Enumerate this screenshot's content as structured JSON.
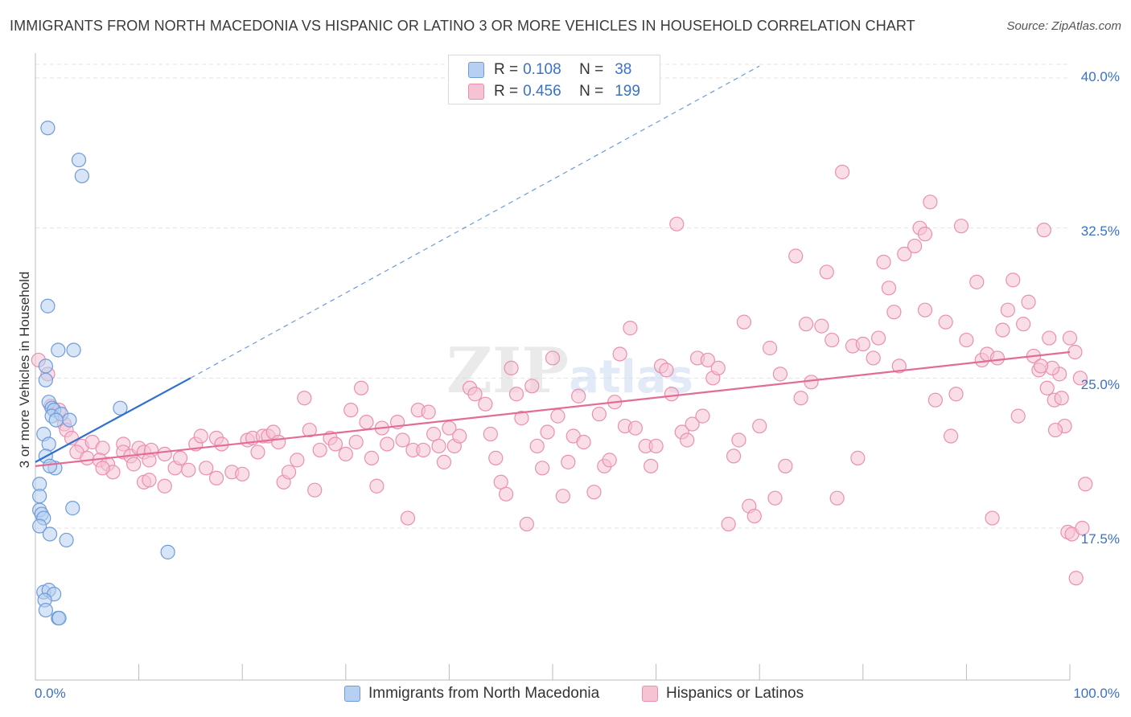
{
  "title": "IMMIGRANTS FROM NORTH MACEDONIA VS HISPANIC OR LATINO 3 OR MORE VEHICLES IN HOUSEHOLD CORRELATION CHART",
  "source": "Source: ZipAtlas.com",
  "watermark": "ZIPatlas",
  "legend_box": {
    "rows": [
      {
        "r_label": "R =",
        "r_value": "0.108",
        "n_label": "N =",
        "n_value": "38"
      },
      {
        "r_label": "R =",
        "r_value": "0.456",
        "n_label": "N =",
        "n_value": "199"
      }
    ]
  },
  "colors": {
    "blue_fill": "#b7cff0",
    "blue_stroke": "#6e9bd9",
    "blue_line": "#2f6fce",
    "pink_fill": "#f6c3d3",
    "pink_stroke": "#ea8fb0",
    "pink_line": "#e36b98",
    "tick_text": "#3a72c4",
    "grid": "#e3e3e3"
  },
  "chart_data": {
    "type": "scatter",
    "title": "IMMIGRANTS FROM NORTH MACEDONIA VS HISPANIC OR LATINO 3 OR MORE VEHICLES IN HOUSEHOLD CORRELATION CHART",
    "xlabel": "",
    "ylabel": "3 or more Vehicles in Household",
    "xlim": [
      0,
      100
    ],
    "ylim": [
      10.0,
      41.0
    ],
    "x_ticks_labels": [
      "0.0%",
      "100.0%"
    ],
    "y_ticks": [
      17.5,
      25.0,
      32.5,
      40.0
    ],
    "y_ticks_labels": [
      "17.5%",
      "25.0%",
      "32.5%",
      "40.0%"
    ],
    "grid": "horizontal dashed",
    "legend_position": "bottom",
    "series": [
      {
        "name": "Immigrants from North Macedonia",
        "color": "#6e9bd9",
        "r": 0.108,
        "n": 38,
        "trend": {
          "x0": 0,
          "y0": 20.8,
          "x1": 15,
          "y1": 25.0,
          "dashed_to": {
            "x": 70,
            "y": 40.6
          }
        },
        "points": [
          [
            1.2,
            37.5
          ],
          [
            4.2,
            35.9
          ],
          [
            4.5,
            35.1
          ],
          [
            1.2,
            28.6
          ],
          [
            2.2,
            26.4
          ],
          [
            3.7,
            26.4
          ],
          [
            1.0,
            25.6
          ],
          [
            1.0,
            24.9
          ],
          [
            1.3,
            23.8
          ],
          [
            1.6,
            23.5
          ],
          [
            1.8,
            23.4
          ],
          [
            1.6,
            23.1
          ],
          [
            8.2,
            23.5
          ],
          [
            2.5,
            23.2
          ],
          [
            2.0,
            22.9
          ],
          [
            3.3,
            22.9
          ],
          [
            0.8,
            22.2
          ],
          [
            1.3,
            21.7
          ],
          [
            1.0,
            21.1
          ],
          [
            1.9,
            20.5
          ],
          [
            1.4,
            20.6
          ],
          [
            0.4,
            19.7
          ],
          [
            0.4,
            19.1
          ],
          [
            0.4,
            18.4
          ],
          [
            0.6,
            18.2
          ],
          [
            0.8,
            18.0
          ],
          [
            3.6,
            18.5
          ],
          [
            0.4,
            17.6
          ],
          [
            1.4,
            17.2
          ],
          [
            3.0,
            16.9
          ],
          [
            12.8,
            16.3
          ],
          [
            0.8,
            14.3
          ],
          [
            1.3,
            14.4
          ],
          [
            1.8,
            14.2
          ],
          [
            0.9,
            13.9
          ],
          [
            1.0,
            13.4
          ],
          [
            2.2,
            13.0
          ],
          [
            2.3,
            13.0
          ]
        ]
      },
      {
        "name": "Hispanics or Latinos",
        "color": "#ea8fb0",
        "r": 0.456,
        "n": 199,
        "trend": {
          "x0": 0,
          "y0": 20.6,
          "x1": 100,
          "y1": 26.3
        },
        "points": [
          [
            0.3,
            25.9
          ],
          [
            1.2,
            25.2
          ],
          [
            1.5,
            23.6
          ],
          [
            2.3,
            23.4
          ],
          [
            2.8,
            22.7
          ],
          [
            3.0,
            22.4
          ],
          [
            3.5,
            22.0
          ],
          [
            4.5,
            21.6
          ],
          [
            5.5,
            21.8
          ],
          [
            6.5,
            21.5
          ],
          [
            4.0,
            21.3
          ],
          [
            5.0,
            21.0
          ],
          [
            6.2,
            20.9
          ],
          [
            7.0,
            20.7
          ],
          [
            8.5,
            21.7
          ],
          [
            8.5,
            21.3
          ],
          [
            9.2,
            21.1
          ],
          [
            10.0,
            21.5
          ],
          [
            10.5,
            21.3
          ],
          [
            11.2,
            21.4
          ],
          [
            11.0,
            20.9
          ],
          [
            12.5,
            21.2
          ],
          [
            13.5,
            20.5
          ],
          [
            14.0,
            21.0
          ],
          [
            14.8,
            20.4
          ],
          [
            15.5,
            21.7
          ],
          [
            7.5,
            20.3
          ],
          [
            6.5,
            20.5
          ],
          [
            9.5,
            20.7
          ],
          [
            10.5,
            19.8
          ],
          [
            11.0,
            19.9
          ],
          [
            12.5,
            19.6
          ],
          [
            16.5,
            20.5
          ],
          [
            17.5,
            20.0
          ],
          [
            16.0,
            22.1
          ],
          [
            17.5,
            22.0
          ],
          [
            18.0,
            21.7
          ],
          [
            19.0,
            20.3
          ],
          [
            20.0,
            20.2
          ],
          [
            20.5,
            21.9
          ],
          [
            21.0,
            22.0
          ],
          [
            21.5,
            21.3
          ],
          [
            22.0,
            22.1
          ],
          [
            22.5,
            22.1
          ],
          [
            23.0,
            22.3
          ],
          [
            23.5,
            21.8
          ],
          [
            24.0,
            19.8
          ],
          [
            24.5,
            20.3
          ],
          [
            25.3,
            20.9
          ],
          [
            26.0,
            24.0
          ],
          [
            26.5,
            22.4
          ],
          [
            27.0,
            19.4
          ],
          [
            27.5,
            21.4
          ],
          [
            28.5,
            22.0
          ],
          [
            29.0,
            21.7
          ],
          [
            30.0,
            21.2
          ],
          [
            30.5,
            23.4
          ],
          [
            31.0,
            21.8
          ],
          [
            31.5,
            24.5
          ],
          [
            32.0,
            22.8
          ],
          [
            32.5,
            21.0
          ],
          [
            33.0,
            19.6
          ],
          [
            33.5,
            22.5
          ],
          [
            34.0,
            21.7
          ],
          [
            35.0,
            22.8
          ],
          [
            35.5,
            21.9
          ],
          [
            36.0,
            18.0
          ],
          [
            36.5,
            21.4
          ],
          [
            37.0,
            23.4
          ],
          [
            37.5,
            21.4
          ],
          [
            38.0,
            23.3
          ],
          [
            38.5,
            22.2
          ],
          [
            39.0,
            21.6
          ],
          [
            39.5,
            20.8
          ],
          [
            40.0,
            22.5
          ],
          [
            40.5,
            21.6
          ],
          [
            41.0,
            22.1
          ],
          [
            42.0,
            24.5
          ],
          [
            42.5,
            24.2
          ],
          [
            43.5,
            23.7
          ],
          [
            44.0,
            22.2
          ],
          [
            44.5,
            21.0
          ],
          [
            45.0,
            19.8
          ],
          [
            45.5,
            19.2
          ],
          [
            46.0,
            25.5
          ],
          [
            46.5,
            24.2
          ],
          [
            47.0,
            23.0
          ],
          [
            47.5,
            17.7
          ],
          [
            48.0,
            24.6
          ],
          [
            48.5,
            21.6
          ],
          [
            49.0,
            20.5
          ],
          [
            49.5,
            22.3
          ],
          [
            50.0,
            26.0
          ],
          [
            50.5,
            23.1
          ],
          [
            51.0,
            19.1
          ],
          [
            51.5,
            20.8
          ],
          [
            52.0,
            22.1
          ],
          [
            52.5,
            24.1
          ],
          [
            53.0,
            21.8
          ],
          [
            54.0,
            19.3
          ],
          [
            54.5,
            23.2
          ],
          [
            55.0,
            20.6
          ],
          [
            55.5,
            20.9
          ],
          [
            56.0,
            23.8
          ],
          [
            56.5,
            26.2
          ],
          [
            57.0,
            22.6
          ],
          [
            57.5,
            27.5
          ],
          [
            58.0,
            22.5
          ],
          [
            59.0,
            21.6
          ],
          [
            59.5,
            20.6
          ],
          [
            60.0,
            21.6
          ],
          [
            60.5,
            25.6
          ],
          [
            61.0,
            25.4
          ],
          [
            61.5,
            24.2
          ],
          [
            62.0,
            32.7
          ],
          [
            62.5,
            22.3
          ],
          [
            63.0,
            21.9
          ],
          [
            63.5,
            22.7
          ],
          [
            64.0,
            26.0
          ],
          [
            64.5,
            23.1
          ],
          [
            65.0,
            25.9
          ],
          [
            65.5,
            25.0
          ],
          [
            66.0,
            25.5
          ],
          [
            67.0,
            17.7
          ],
          [
            67.5,
            21.1
          ],
          [
            68.0,
            21.9
          ],
          [
            68.5,
            27.8
          ],
          [
            69.0,
            18.6
          ],
          [
            69.5,
            18.1
          ],
          [
            70.0,
            22.6
          ],
          [
            71.0,
            26.5
          ],
          [
            71.5,
            19.0
          ],
          [
            72.0,
            25.2
          ],
          [
            72.5,
            20.6
          ],
          [
            73.5,
            31.1
          ],
          [
            74.0,
            24.0
          ],
          [
            74.5,
            27.7
          ],
          [
            75.0,
            24.8
          ],
          [
            76.0,
            27.6
          ],
          [
            77.0,
            26.9
          ],
          [
            76.5,
            30.3
          ],
          [
            77.5,
            19.0
          ],
          [
            78.0,
            35.3
          ],
          [
            79.0,
            26.6
          ],
          [
            79.5,
            21.0
          ],
          [
            80.0,
            26.7
          ],
          [
            81.0,
            26.0
          ],
          [
            81.5,
            27.0
          ],
          [
            82.0,
            30.8
          ],
          [
            82.5,
            29.5
          ],
          [
            83.0,
            28.3
          ],
          [
            83.5,
            25.6
          ],
          [
            84.0,
            31.2
          ],
          [
            85.0,
            31.6
          ],
          [
            85.5,
            32.5
          ],
          [
            86.0,
            28.4
          ],
          [
            86.5,
            33.8
          ],
          [
            86.0,
            32.2
          ],
          [
            87.0,
            23.9
          ],
          [
            88.0,
            27.8
          ],
          [
            88.5,
            22.1
          ],
          [
            89.0,
            24.2
          ],
          [
            89.5,
            32.6
          ],
          [
            90.0,
            26.9
          ],
          [
            91.0,
            29.8
          ],
          [
            91.5,
            25.9
          ],
          [
            92.0,
            26.2
          ],
          [
            92.5,
            18.0
          ],
          [
            93.0,
            26.0
          ],
          [
            93.5,
            27.4
          ],
          [
            94.0,
            28.4
          ],
          [
            94.5,
            29.9
          ],
          [
            95.0,
            23.1
          ],
          [
            95.5,
            27.7
          ],
          [
            96.0,
            28.8
          ],
          [
            96.5,
            26.1
          ],
          [
            97.0,
            25.4
          ],
          [
            97.5,
            32.4
          ],
          [
            98.0,
            27.0
          ],
          [
            98.5,
            23.9
          ],
          [
            99.0,
            25.2
          ],
          [
            99.5,
            22.6
          ],
          [
            100.0,
            27.0
          ],
          [
            97.8,
            24.5
          ],
          [
            98.3,
            25.5
          ],
          [
            99.2,
            24.0
          ],
          [
            100.5,
            26.3
          ],
          [
            98.6,
            22.4
          ],
          [
            101.0,
            25.0
          ],
          [
            99.8,
            17.3
          ],
          [
            100.2,
            17.2
          ],
          [
            100.6,
            15.0
          ],
          [
            101.2,
            17.5
          ],
          [
            101.5,
            19.7
          ],
          [
            97.2,
            25.6
          ]
        ]
      }
    ]
  },
  "axis": {
    "ylabel": "3 or more Vehicles in Household",
    "x_left": "0.0%",
    "x_right": "100.0%"
  }
}
